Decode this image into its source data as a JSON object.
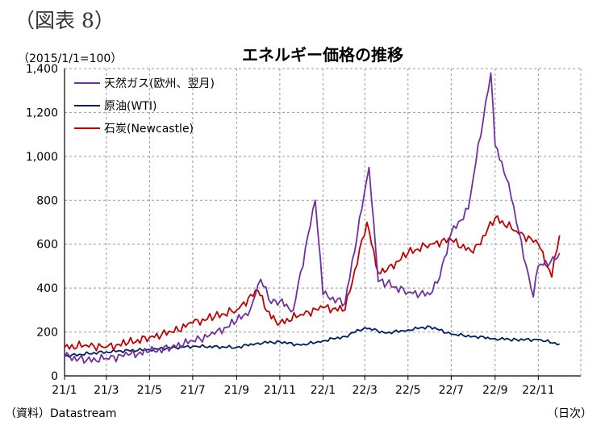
{
  "figure_label": "（図表 8）",
  "unit_note": "（2015/1/1=100）",
  "source": "（資料）Datastream",
  "x_unit": "（日次）",
  "colors": {
    "gas": "#7030a0",
    "oil": "#002060",
    "coal": "#c00000",
    "grid": "#999999"
  },
  "chart_data": {
    "type": "line",
    "title": "エネルギー価格の推移",
    "xlabel": "",
    "ylabel": "",
    "ylim": [
      0,
      1400
    ],
    "grid": true,
    "legend_position": "top-left",
    "x_ticks": [
      "21/1",
      "21/3",
      "21/5",
      "21/7",
      "21/9",
      "21/11",
      "22/1",
      "22/3",
      "22/5",
      "22/7",
      "22/9",
      "22/11"
    ],
    "y_ticks": [
      "0",
      "200",
      "400",
      "600",
      "800",
      "1,000",
      "1,200",
      "1,400"
    ],
    "series": [
      {
        "name": "天然ガス(欧州、翌月)",
        "color": "#7030a0",
        "x": [
          "2021-01",
          "2021-02",
          "2021-03",
          "2021-04",
          "2021-05",
          "2021-06",
          "2021-07",
          "2021-08",
          "2021-09",
          "2021-09-20",
          "2021-10-05",
          "2021-10-20",
          "2021-11",
          "2021-11-20",
          "2021-12-21",
          "2022-01",
          "2022-02",
          "2022-03-07",
          "2022-03-20",
          "2022-04",
          "2022-05",
          "2022-06",
          "2022-06-15",
          "2022-07",
          "2022-07-25",
          "2022-08",
          "2022-08-26",
          "2022-09",
          "2022-09-20",
          "2022-10",
          "2022-10-25",
          "2022-11",
          "2022-11-25",
          "2022-12"
        ],
        "y": [
          90,
          70,
          80,
          95,
          110,
          130,
          160,
          190,
          250,
          300,
          440,
          330,
          340,
          300,
          800,
          370,
          330,
          950,
          430,
          420,
          380,
          370,
          450,
          650,
          760,
          900,
          1380,
          1050,
          880,
          700,
          360,
          500,
          530,
          560
        ]
      },
      {
        "name": "原油(WTI)",
        "color": "#002060",
        "x": [
          "2021-01",
          "2021-03",
          "2021-05",
          "2021-07",
          "2021-09",
          "2021-10",
          "2021-11",
          "2021-12",
          "2022-01",
          "2022-02",
          "2022-03",
          "2022-04",
          "2022-05",
          "2022-06",
          "2022-07",
          "2022-08",
          "2022-09",
          "2022-10",
          "2022-11",
          "2022-12"
        ],
        "y": [
          90,
          110,
          120,
          135,
          130,
          150,
          155,
          140,
          160,
          180,
          220,
          195,
          210,
          225,
          190,
          180,
          170,
          165,
          165,
          145
        ]
      },
      {
        "name": "石炭(Newcastle)",
        "color": "#c00000",
        "x": [
          "2021-01",
          "2021-02",
          "2021-03",
          "2021-04",
          "2021-05",
          "2021-06",
          "2021-07",
          "2021-08",
          "2021-09",
          "2021-10",
          "2021-10-20",
          "2021-11",
          "2021-12",
          "2022-01",
          "2022-02",
          "2022-03-04",
          "2022-03-20",
          "2022-04",
          "2022-05",
          "2022-06",
          "2022-07",
          "2022-08",
          "2022-09",
          "2022-10",
          "2022-11",
          "2022-11-20",
          "2022-12"
        ],
        "y": [
          130,
          140,
          130,
          150,
          175,
          200,
          240,
          270,
          300,
          390,
          260,
          240,
          280,
          310,
          300,
          700,
          470,
          480,
          560,
          600,
          620,
          560,
          720,
          660,
          600,
          450,
          640
        ]
      }
    ]
  }
}
